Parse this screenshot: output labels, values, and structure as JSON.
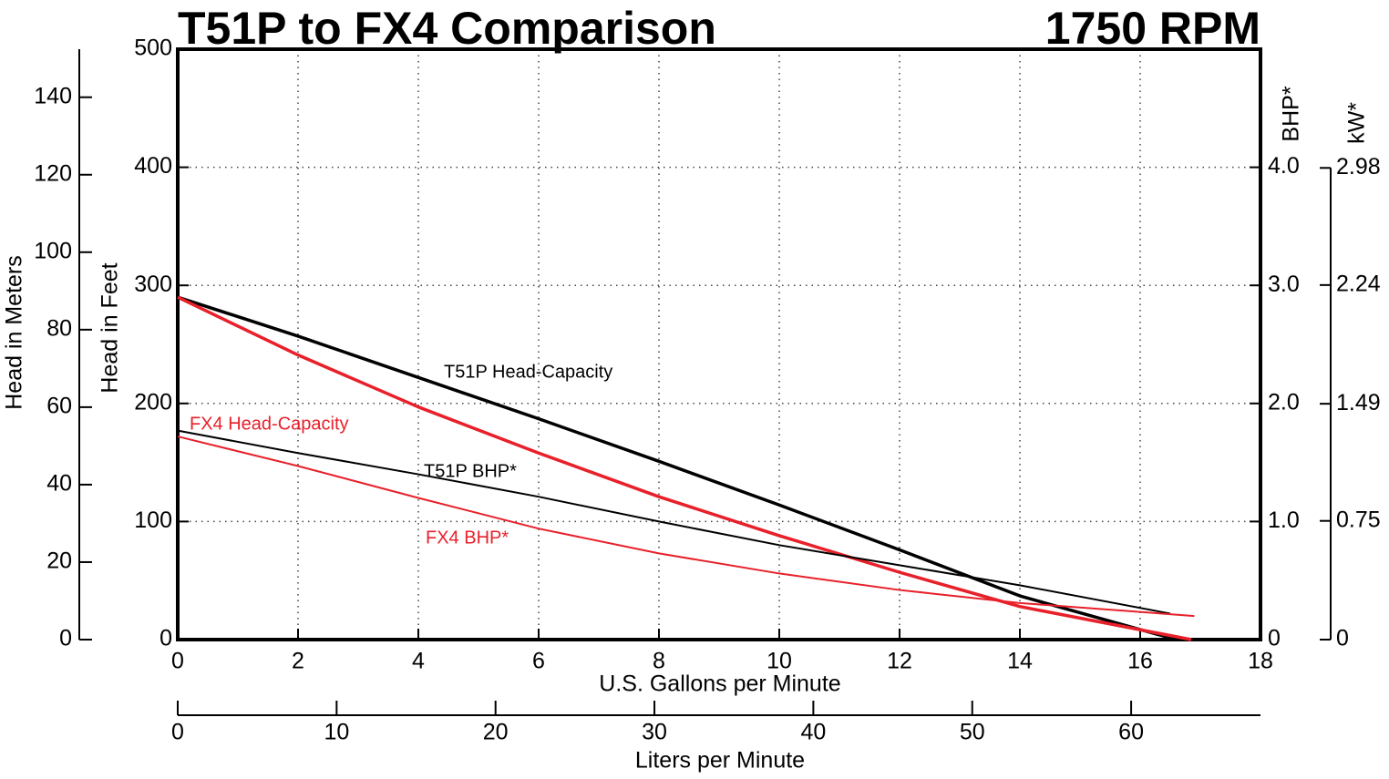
{
  "chart_data": {
    "type": "line",
    "title": "T51P to FX4 Comparison",
    "subtitle": "1750 RPM",
    "x_label": "U.S. Gallons per Minute",
    "xlim": [
      0,
      18
    ],
    "xticks": [
      0,
      2,
      4,
      6,
      8,
      10,
      12,
      14,
      16,
      18
    ],
    "y_label": "Head in Feet",
    "ylim": [
      0,
      500
    ],
    "yticks": [
      0,
      100,
      200,
      300,
      400,
      500
    ],
    "y2_label": "BHP*",
    "y2lim": [
      0,
      5
    ],
    "y2ticks": [
      {
        "value": 0,
        "label": "0"
      },
      {
        "value": 1,
        "label": "1.0"
      },
      {
        "value": 2,
        "label": "2.0"
      },
      {
        "value": 3,
        "label": "3.0"
      },
      {
        "value": 4,
        "label": "4.0"
      }
    ],
    "x2_label": "Liters per Minute",
    "x2lim": [
      0,
      68.14
    ],
    "x2ticks": [
      0,
      10,
      20,
      30,
      40,
      50,
      60
    ],
    "y3_label": "Head in Meters",
    "y3lim": [
      0,
      152.4
    ],
    "y3ticks": [
      0,
      20,
      40,
      60,
      80,
      100,
      120,
      140
    ],
    "y4_label": "kW*",
    "y4lim": [
      0,
      3.73
    ],
    "y4ticks": [
      0,
      0.75,
      1.49,
      2.24,
      2.98
    ],
    "grid": true,
    "series": [
      {
        "name": "T51P Head-Capacity",
        "color": "#000000",
        "width": 3.5,
        "x": [
          0,
          2,
          4,
          6,
          8,
          10,
          12,
          14,
          16.6
        ],
        "values": [
          290,
          257,
          222,
          187,
          151,
          114,
          76,
          37,
          0
        ]
      },
      {
        "name": "FX4 Head-Capacity",
        "color": "#e8202a",
        "width": 3.5,
        "x": [
          0,
          2,
          4,
          6,
          8,
          10,
          12,
          14,
          16.85
        ],
        "values": [
          290,
          241,
          197,
          158,
          121,
          88,
          57,
          28,
          0
        ]
      },
      {
        "name": "T51P BHP*",
        "color": "#000000",
        "width": 2,
        "axis": "y2",
        "x": [
          0,
          2,
          4,
          6,
          8,
          10,
          12,
          14,
          16.5
        ],
        "values": [
          1.77,
          1.58,
          1.4,
          1.21,
          1.0,
          0.8,
          0.63,
          0.46,
          0.22
        ]
      },
      {
        "name": "FX4 BHP*",
        "color": "#e8202a",
        "width": 2,
        "axis": "y2",
        "x": [
          0,
          2,
          4,
          6,
          8,
          10,
          12,
          14,
          16.9
        ],
        "values": [
          1.72,
          1.47,
          1.2,
          0.94,
          0.73,
          0.56,
          0.42,
          0.31,
          0.2
        ]
      }
    ]
  }
}
